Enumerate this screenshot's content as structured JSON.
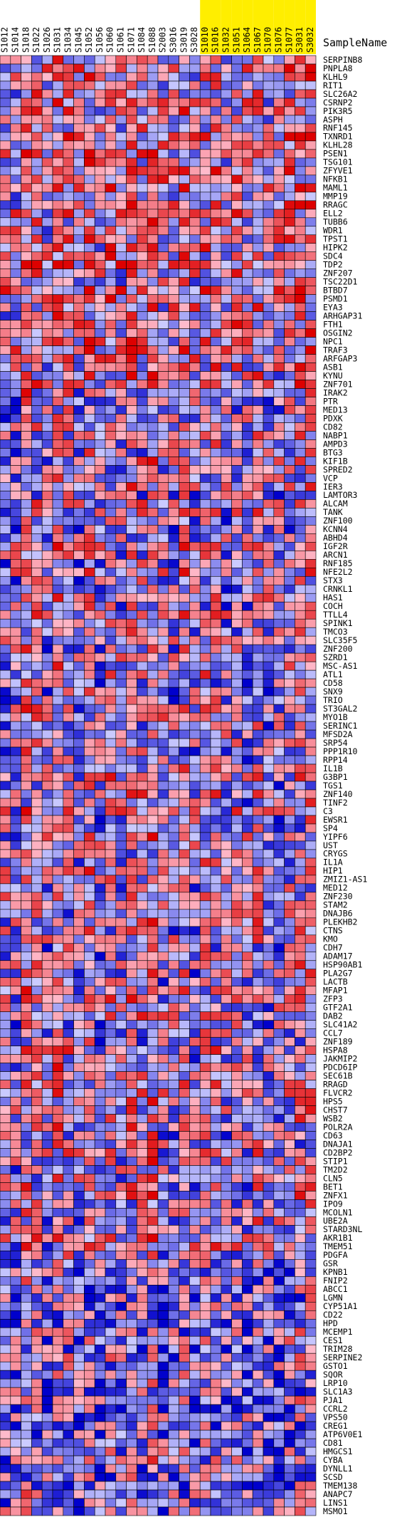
{
  "chart_data": {
    "type": "heatmap",
    "header_label": "SampleName",
    "colors": {
      "low": "#0000cc",
      "mid_low": "#ccccff",
      "mid_high": "#ffbbcc",
      "high": "#dd0000",
      "grid": "#000000",
      "highlight": "#ffee00"
    },
    "columns": [
      {
        "name": "S1012",
        "highlight": false
      },
      {
        "name": "S1014",
        "highlight": false
      },
      {
        "name": "S1018",
        "highlight": false
      },
      {
        "name": "S1022",
        "highlight": false
      },
      {
        "name": "S1026",
        "highlight": false
      },
      {
        "name": "S1031",
        "highlight": false
      },
      {
        "name": "S1034",
        "highlight": false
      },
      {
        "name": "S1045",
        "highlight": false
      },
      {
        "name": "S1052",
        "highlight": false
      },
      {
        "name": "S1056",
        "highlight": false
      },
      {
        "name": "S1060",
        "highlight": false
      },
      {
        "name": "S1061",
        "highlight": false
      },
      {
        "name": "S1071",
        "highlight": false
      },
      {
        "name": "S1084",
        "highlight": false
      },
      {
        "name": "S1088",
        "highlight": false
      },
      {
        "name": "S2003",
        "highlight": false
      },
      {
        "name": "S3016",
        "highlight": false
      },
      {
        "name": "S3019",
        "highlight": false
      },
      {
        "name": "S3028",
        "highlight": false
      },
      {
        "name": "S1010",
        "highlight": true
      },
      {
        "name": "S1016",
        "highlight": true
      },
      {
        "name": "S1032",
        "highlight": true
      },
      {
        "name": "S1051",
        "highlight": true
      },
      {
        "name": "S1064",
        "highlight": true
      },
      {
        "name": "S1067",
        "highlight": true
      },
      {
        "name": "S1070",
        "highlight": true
      },
      {
        "name": "S1076",
        "highlight": true
      },
      {
        "name": "S1077",
        "highlight": true
      },
      {
        "name": "S3031",
        "highlight": true
      },
      {
        "name": "S3032",
        "highlight": true
      }
    ],
    "rows": [
      "SERPINB8",
      "PNPLA8",
      "KLHL9",
      "RIT1",
      "SLC26A2",
      "CSRNP2",
      "PIK3R5",
      "ASPH",
      "RNF145",
      "TXNRD1",
      "KLHL28",
      "PSEN1",
      "TSG101",
      "ZFYVE1",
      "NFKB1",
      "MAML1",
      "MMP19",
      "RRAGC",
      "ELL2",
      "TUBB6",
      "WDR1",
      "TPST1",
      "HIPK2",
      "SDC4",
      "TDP2",
      "ZNF207",
      "TSC22D1",
      "BTBD7",
      "PSMD1",
      "EYA3",
      "ARHGAP31",
      "FTH1",
      "OSGIN2",
      "NPC1",
      "TRAF3",
      "ARFGAP3",
      "ASB1",
      "KYNU",
      "ZNF701",
      "IRAK2",
      "PTR",
      "MED13",
      "PDXK",
      "CD82",
      "NABP1",
      "AMPD3",
      "BTG3",
      "KIF1B",
      "SPRED2",
      "VCP",
      "IER3",
      "LAMTOR3",
      "ALCAM",
      "TANK",
      "ZNF100",
      "KCNN4",
      "ABHD4",
      "IGF2R",
      "ARCN1",
      "RNF185",
      "NFE2L2",
      "STX3",
      "CRNKL1",
      "HAS1",
      "COCH",
      "TTLL4",
      "SPINK1",
      "TMCO3",
      "SLC35F5",
      "ZNF200",
      "SZRD1",
      "MSC-AS1",
      "ATL1",
      "CD58",
      "SNX9",
      "TRIO",
      "ST3GAL2",
      "MYO1B",
      "SERINC1",
      "MFSD2A",
      "SRP54",
      "PPP1R10",
      "RPP14",
      "IL1B",
      "G3BP1",
      "TGS1",
      "ZNF140",
      "TINF2",
      "C3",
      "EWSR1",
      "SP4",
      "YIPF6",
      "UST",
      "CRYGS",
      "IL1A",
      "HIP1",
      "ZMIZ1-AS1",
      "MED12",
      "ZNF230",
      "STAM2",
      "DNAJB6",
      "PLEKHB2",
      "CTNS",
      "KMO",
      "CDH7",
      "ADAM17",
      "HSP90AB1",
      "PLA2G7",
      "LACTB",
      "MFAP1",
      "ZFP3",
      "GTF2A1",
      "DAB2",
      "SLC41A2",
      "CCL7",
      "ZNF189",
      "HSPA8",
      "JAKMIP2",
      "PDCD6IP",
      "SEC61B",
      "RRAGD",
      "FLVCR2",
      "HPS5",
      "CHST7",
      "WSB2",
      "POLR2A",
      "CD63",
      "DNAJA1",
      "CD2BP2",
      "STIP1",
      "TM2D2",
      "CLN5",
      "BET1",
      "ZNFX1",
      "IPO9",
      "MCOLN1",
      "UBE2A",
      "STARD3NL",
      "AKR1B1",
      "TMEM51",
      "PDGFA",
      "GSR",
      "KPNB1",
      "FNIP2",
      "ABCC1",
      "LGMN",
      "CYP51A1",
      "CD22",
      "HPD",
      "MCEMP1",
      "CES1",
      "TRIM28",
      "SERPINE2",
      "GSTO1",
      "SQOR",
      "LRP10",
      "SLC1A3",
      "PJA1",
      "CCRL2",
      "VPS50",
      "CREG1",
      "ATP6V0E1",
      "CD81",
      "HMGCS1",
      "CYBA",
      "DYNLL1",
      "SCSD",
      "TMEM138",
      "ANAPC7",
      "LINS1",
      "MSMO1"
    ],
    "value_range": [
      -3,
      3
    ],
    "values_note": "",
    "seed": 771
  }
}
